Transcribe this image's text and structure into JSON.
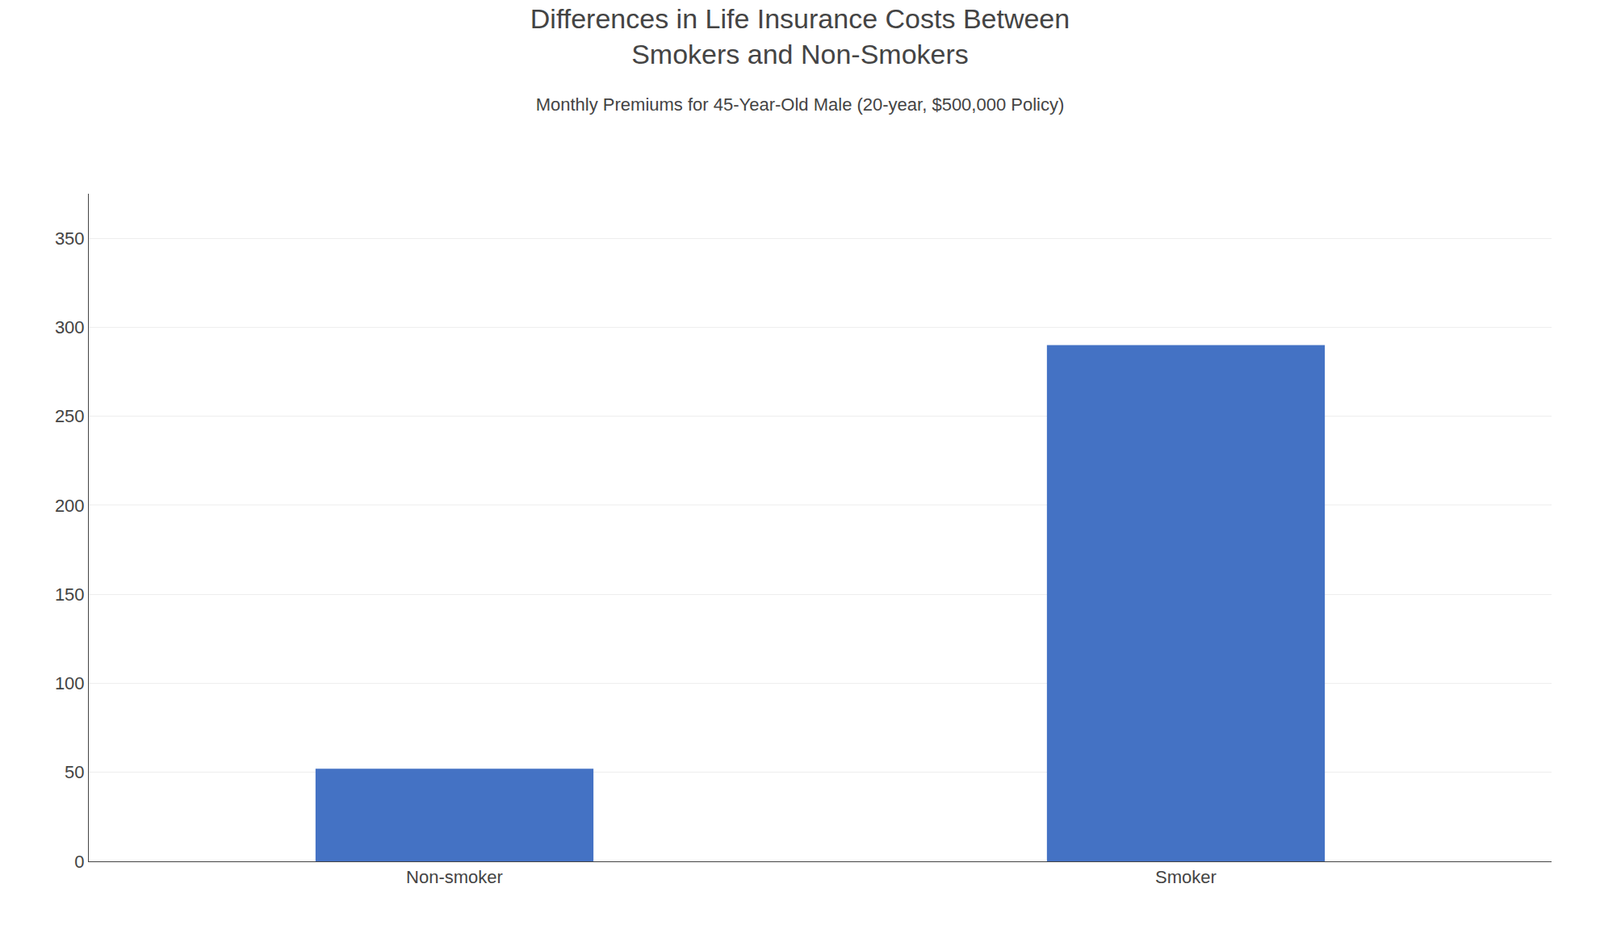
{
  "chart_data": {
    "type": "bar",
    "title": "Differences in Life Insurance Costs Between\nSmokers and Non-Smokers",
    "subtitle": "Monthly Premiums for 45-Year-Old Male (20-year, $500,000 Policy)",
    "categories": [
      "Non-smoker",
      "Smoker"
    ],
    "values": [
      52,
      290
    ],
    "color": "#4472C4",
    "ylim": [
      0,
      375
    ],
    "yticks": [
      0,
      50,
      100,
      150,
      200,
      250,
      300,
      350
    ],
    "grid": true
  }
}
